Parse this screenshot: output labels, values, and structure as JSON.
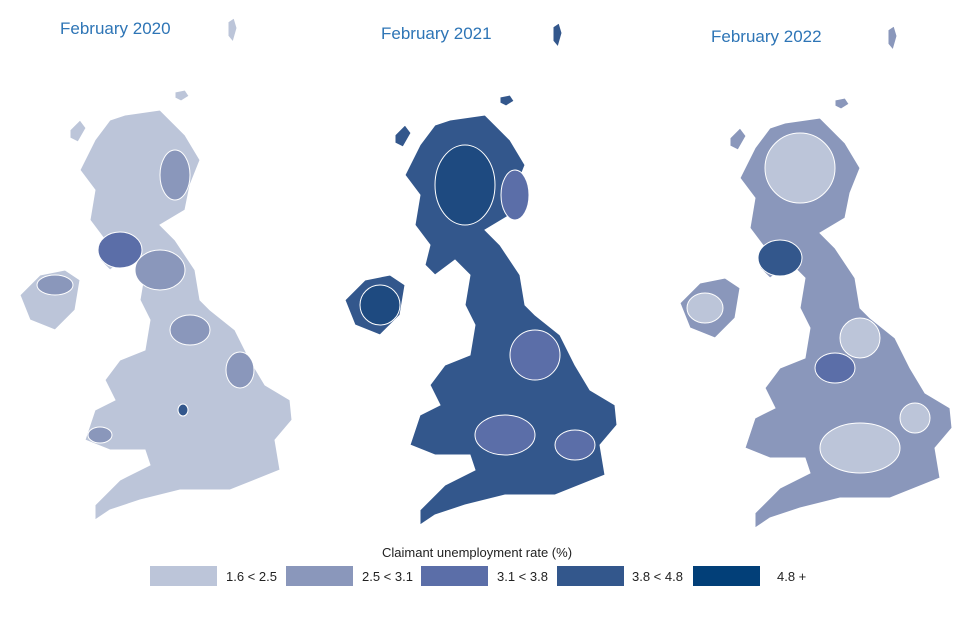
{
  "maps": [
    {
      "title": "February 2020",
      "dominant_band": "1.6 < 2.5"
    },
    {
      "title": "February 2021",
      "dominant_band": "3.8 < 4.8"
    },
    {
      "title": "February 2022",
      "dominant_band": "2.5 < 3.1"
    }
  ],
  "legend": {
    "title": "Claimant unemployment rate (%)",
    "items": [
      {
        "label": "1.6 < 2.5",
        "color": "#bcc5d9"
      },
      {
        "label": "2.5 < 3.1",
        "color": "#8a97bb"
      },
      {
        "label": "3.1 < 3.8",
        "color": "#5b6ea8"
      },
      {
        "label": "3.8 < 4.8",
        "color": "#33578c"
      },
      {
        "label": "4.8 +",
        "color": "#023f78"
      }
    ]
  }
}
